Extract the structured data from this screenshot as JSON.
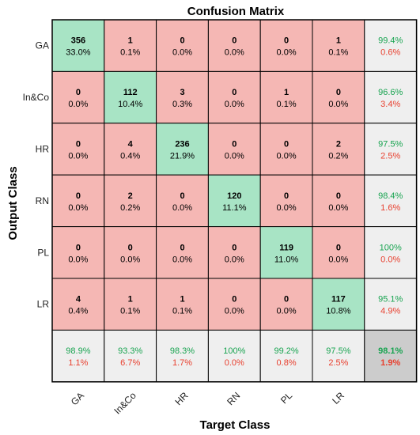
{
  "chart_data": {
    "type": "heatmap",
    "title": "Confusion Matrix",
    "xlabel": "Target Class",
    "ylabel": "Output Class",
    "x_categories": [
      "GA",
      "In&Co",
      "HR",
      "RN",
      "PL",
      "LR"
    ],
    "y_categories": [
      "GA",
      "In&Co",
      "HR",
      "RN",
      "PL",
      "LR"
    ],
    "counts": [
      [
        356,
        1,
        0,
        0,
        0,
        1
      ],
      [
        0,
        112,
        3,
        0,
        1,
        0
      ],
      [
        0,
        4,
        236,
        0,
        0,
        2
      ],
      [
        0,
        2,
        0,
        120,
        0,
        0
      ],
      [
        0,
        0,
        0,
        0,
        119,
        0
      ],
      [
        4,
        1,
        1,
        0,
        0,
        117
      ]
    ],
    "percents": [
      [
        "33.0%",
        "0.1%",
        "0.0%",
        "0.0%",
        "0.0%",
        "0.1%"
      ],
      [
        "0.0%",
        "10.4%",
        "0.3%",
        "0.0%",
        "0.1%",
        "0.0%"
      ],
      [
        "0.0%",
        "0.4%",
        "21.9%",
        "0.0%",
        "0.0%",
        "0.2%"
      ],
      [
        "0.0%",
        "0.2%",
        "0.0%",
        "11.1%",
        "0.0%",
        "0.0%"
      ],
      [
        "0.0%",
        "0.0%",
        "0.0%",
        "0.0%",
        "11.0%",
        "0.0%"
      ],
      [
        "0.4%",
        "0.1%",
        "0.1%",
        "0.0%",
        "0.0%",
        "10.8%"
      ]
    ],
    "row_summary": [
      [
        "99.4%",
        "0.6%"
      ],
      [
        "96.6%",
        "3.4%"
      ],
      [
        "97.5%",
        "2.5%"
      ],
      [
        "98.4%",
        "1.6%"
      ],
      [
        "100%",
        "0.0%"
      ],
      [
        "95.1%",
        "4.9%"
      ]
    ],
    "col_summary": [
      [
        "98.9%",
        "1.1%"
      ],
      [
        "93.3%",
        "6.7%"
      ],
      [
        "98.3%",
        "1.7%"
      ],
      [
        "100%",
        "0.0%"
      ],
      [
        "99.2%",
        "0.8%"
      ],
      [
        "97.5%",
        "2.5%"
      ]
    ],
    "overall": [
      "98.1%",
      "1.9%"
    ],
    "colors": {
      "diagonal": "#a8e4c5",
      "off_diagonal": "#f5b7b4",
      "summary": "#efefef",
      "overall": "#cccccc",
      "correct_text": "#19a451",
      "error_text": "#e8402f",
      "grid": "#000000"
    }
  }
}
